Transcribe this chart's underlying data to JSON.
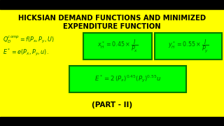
{
  "bg_color": "#FFFF00",
  "title_line1": "HICKSIAN DEMAND FUNCTIONS AND MINIMIZED",
  "title_line2": "EXPENDITURE FUNCTION",
  "title_fontsize": 7.2,
  "title_color": "#000000",
  "box_color": "#00FF00",
  "box_edge_color": "#007700",
  "formula_color": "#006600",
  "part_text": "(PART - II)",
  "part_fontsize": 7.5,
  "eq1_line1": "$Q_D^{comp} = f(P_x, P_y, U)$",
  "eq1_line2": "$E^* = e(P_x, P_y, u).$",
  "eq2": "$x_H^* = 0.45 \\times \\dfrac{I}{P_x}$",
  "eq3": "$y_H^* = 0.55 \\times \\dfrac{I}{P_y}$",
  "eq4": "$E^* = 2\\,(P_x)^{0.45}(P_y)^{0.55}u$"
}
